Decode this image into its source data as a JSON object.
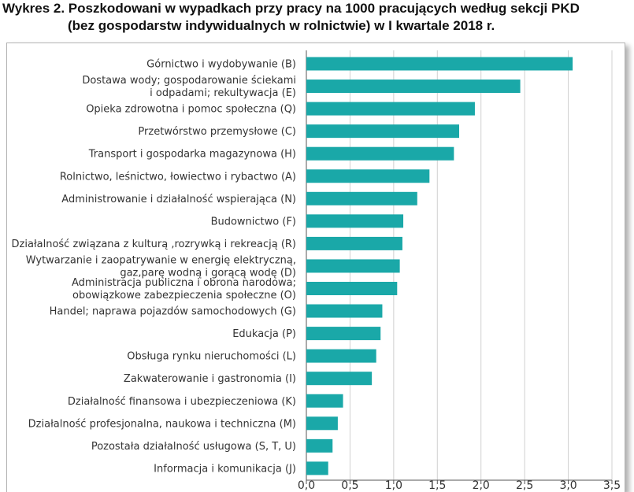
{
  "title": {
    "line1": "Wykres 2. Poszkodowani w wypadkach przy pracy na 1000 pracujących według sekcji PKD",
    "line2": "(bez gospodarstw indywidualnych w rolnictwie) w I kwartale 2018 r."
  },
  "chart_data": {
    "type": "bar",
    "orientation": "horizontal",
    "categories": [
      [
        "Górnictwo i wydobywanie (B)"
      ],
      [
        "Dostawa wody; gospodarowanie ściekami",
        "i odpadami; rekultywacja (E)"
      ],
      [
        "Opieka zdrowotna i pomoc społeczna (Q)"
      ],
      [
        "Przetwórstwo przemysłowe (C)"
      ],
      [
        "Transport i gospodarka magazynowa (H)"
      ],
      [
        "Rolnictwo, leśnictwo, łowiectwo i rybactwo (A)"
      ],
      [
        "Administrowanie i działalność wspierająca (N)"
      ],
      [
        "Budownictwo (F)"
      ],
      [
        "Działalność związana z kulturą ,rozrywką i rekreacją (R)"
      ],
      [
        "Wytwarzanie i zaopatrywanie w energię elektryczną,",
        "gaz,parę wodną i gorącą wodę (D)"
      ],
      [
        "Administracja publiczna i obrona narodowa;",
        "obowiązkowe zabezpieczenia społeczne (O)"
      ],
      [
        "Handel; naprawa pojazdów samochodowych (G)"
      ],
      [
        "Edukacja (P)"
      ],
      [
        "Obsługa rynku nieruchomości (L)"
      ],
      [
        "Zakwaterowanie i gastronomia (I)"
      ],
      [
        "Działalność finansowa i ubezpieczeniowa (K)"
      ],
      [
        "Działalność profesjonalna, naukowa i techniczna (M)"
      ],
      [
        "Pozostała działalność usługowa (S, T, U)"
      ],
      [
        "Informacja i komunikacja (J)"
      ]
    ],
    "values": [
      3.05,
      2.45,
      1.93,
      1.75,
      1.69,
      1.41,
      1.27,
      1.11,
      1.1,
      1.07,
      1.04,
      0.87,
      0.85,
      0.8,
      0.75,
      0.42,
      0.36,
      0.3,
      0.25
    ],
    "xlim": [
      0,
      3.5
    ],
    "ticks": [
      "0,0",
      "0,5",
      "1,0",
      "1,5",
      "2,0",
      "2,5",
      "3,0",
      "3,5"
    ],
    "tick_values": [
      0,
      0.5,
      1.0,
      1.5,
      2.0,
      2.5,
      3.0,
      3.5
    ],
    "grid": "vertical",
    "bar_color": "#1aa8a8",
    "grid_color": "#d0d0d0"
  }
}
